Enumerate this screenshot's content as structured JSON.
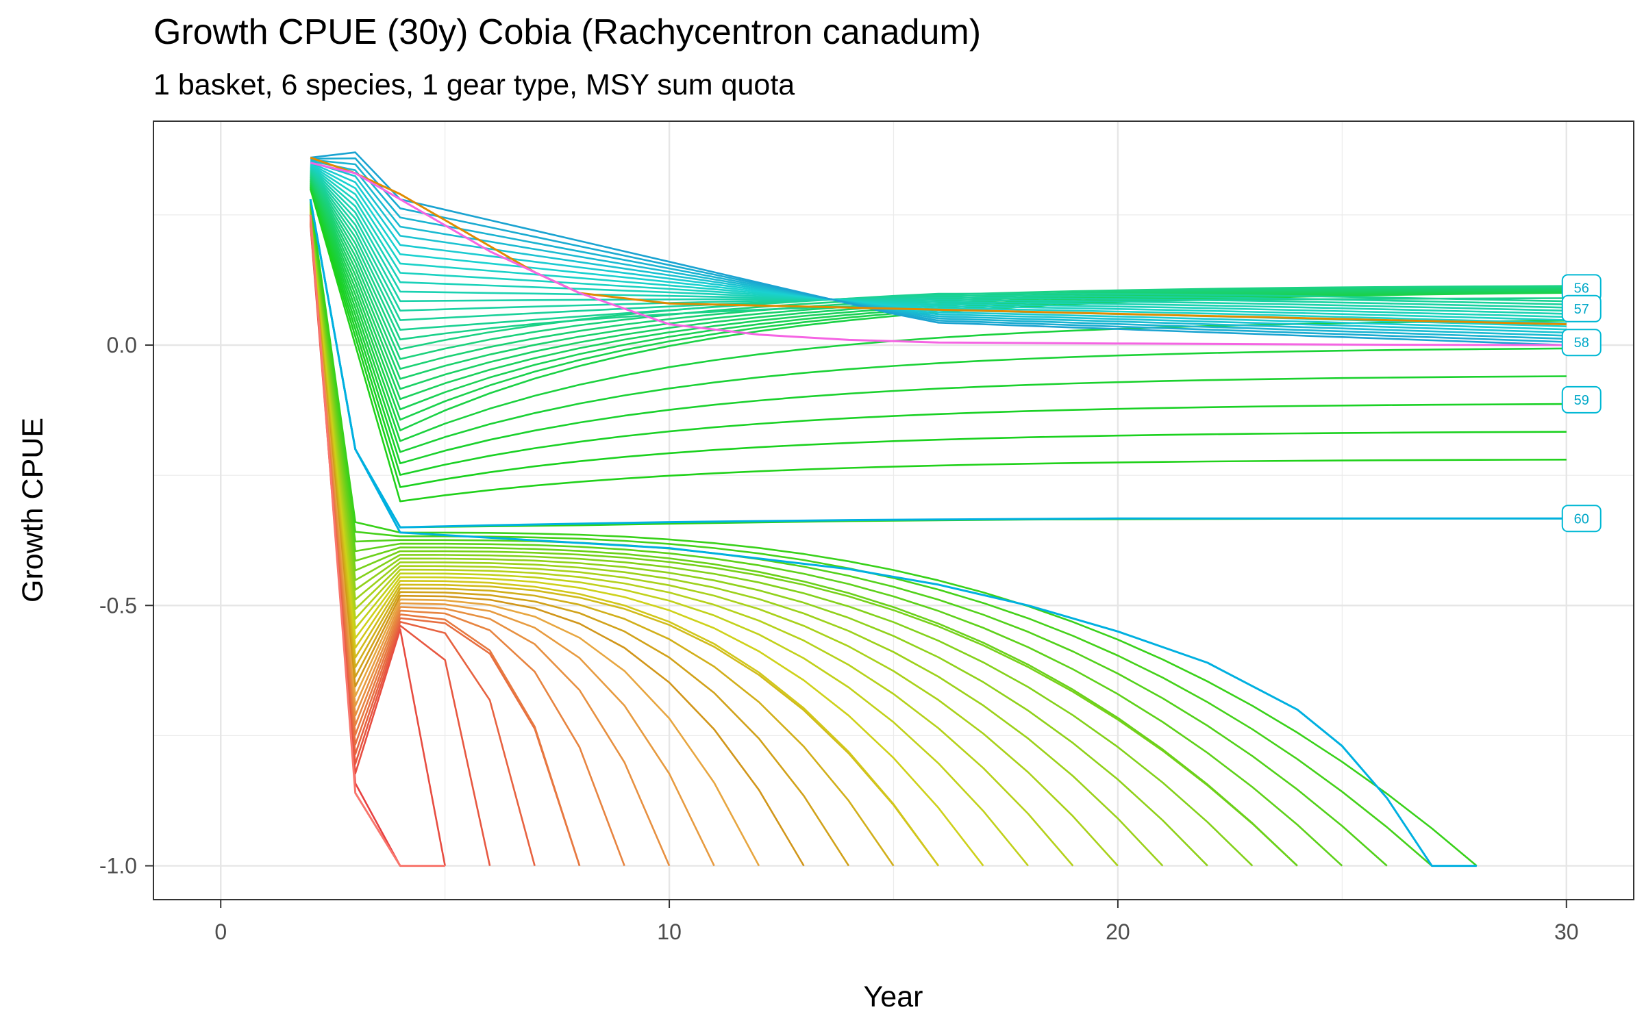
{
  "chart_data": {
    "type": "line",
    "title": "Growth CPUE (30y) Cobia (Rachycentron canadum)",
    "subtitle": "1 basket, 6 species, 1 gear type, MSY sum quota",
    "xlabel": "Year",
    "ylabel": "Growth CPUE",
    "xlim": [
      -1.5,
      31.5
    ],
    "ylim": [
      -1.065,
      0.43
    ],
    "x_ticks": [
      0,
      10,
      20,
      30
    ],
    "x_tick_labels": [
      "0",
      "10",
      "20",
      "30"
    ],
    "y_ticks": [
      -1.0,
      -0.5,
      0.0
    ],
    "y_tick_labels": [
      "-1.0",
      "-0.5",
      "0.0"
    ],
    "grid": true,
    "legend": "none",
    "series_count": 60,
    "palette_note": "hue gradient from red (series 1) through orange, green to cyan/blue (series 60)",
    "labeled_series": [
      {
        "name": "56",
        "x": 30,
        "y": 0.11
      },
      {
        "name": "57",
        "x": 30,
        "y": 0.07
      },
      {
        "name": "58",
        "x": 30,
        "y": 0.005
      },
      {
        "name": "59",
        "x": 30,
        "y": -0.105
      },
      {
        "name": "60",
        "x": 30,
        "y": -0.333
      }
    ],
    "representative_series": [
      {
        "name": "60",
        "x": [
          2,
          3,
          4,
          5,
          6,
          8,
          10,
          12,
          14,
          16,
          18,
          20,
          22,
          24,
          26,
          28,
          30
        ],
        "y": [
          0.28,
          -0.2,
          -0.35,
          -0.348,
          -0.346,
          -0.343,
          -0.34,
          -0.338,
          -0.336,
          -0.335,
          -0.334,
          -0.333,
          -0.333,
          -0.333,
          -0.333,
          -0.333,
          -0.333
        ]
      },
      {
        "name": "decline-to-28",
        "x": [
          2,
          3,
          4,
          6,
          8,
          10,
          12,
          14,
          16,
          18,
          20,
          22,
          24,
          25,
          26,
          27,
          28
        ],
        "y": [
          0.28,
          -0.2,
          -0.36,
          -0.37,
          -0.38,
          -0.39,
          -0.41,
          -0.43,
          -0.46,
          -0.5,
          -0.55,
          -0.61,
          -0.7,
          -0.77,
          -0.87,
          -1.0,
          -1.0
        ]
      },
      {
        "name": "decline-to-5",
        "x": [
          2,
          3,
          4,
          5
        ],
        "y": [
          0.25,
          -0.86,
          -1.0,
          -1.0
        ]
      },
      {
        "name": "upper-orange",
        "x": [
          2,
          3,
          4,
          5,
          6,
          7,
          8,
          10,
          15,
          20,
          25,
          30
        ],
        "y": [
          0.36,
          0.33,
          0.29,
          0.24,
          0.19,
          0.14,
          0.1,
          0.08,
          0.07,
          0.06,
          0.05,
          0.04
        ]
      },
      {
        "name": "magenta-top",
        "x": [
          2,
          3,
          4,
          5,
          6,
          7,
          8,
          9,
          10,
          12,
          14,
          16,
          20,
          25,
          30
        ],
        "y": [
          0.35,
          0.33,
          0.28,
          0.23,
          0.18,
          0.14,
          0.1,
          0.07,
          0.04,
          0.02,
          0.01,
          0.005,
          0.003,
          0.001,
          0.0
        ]
      }
    ]
  }
}
